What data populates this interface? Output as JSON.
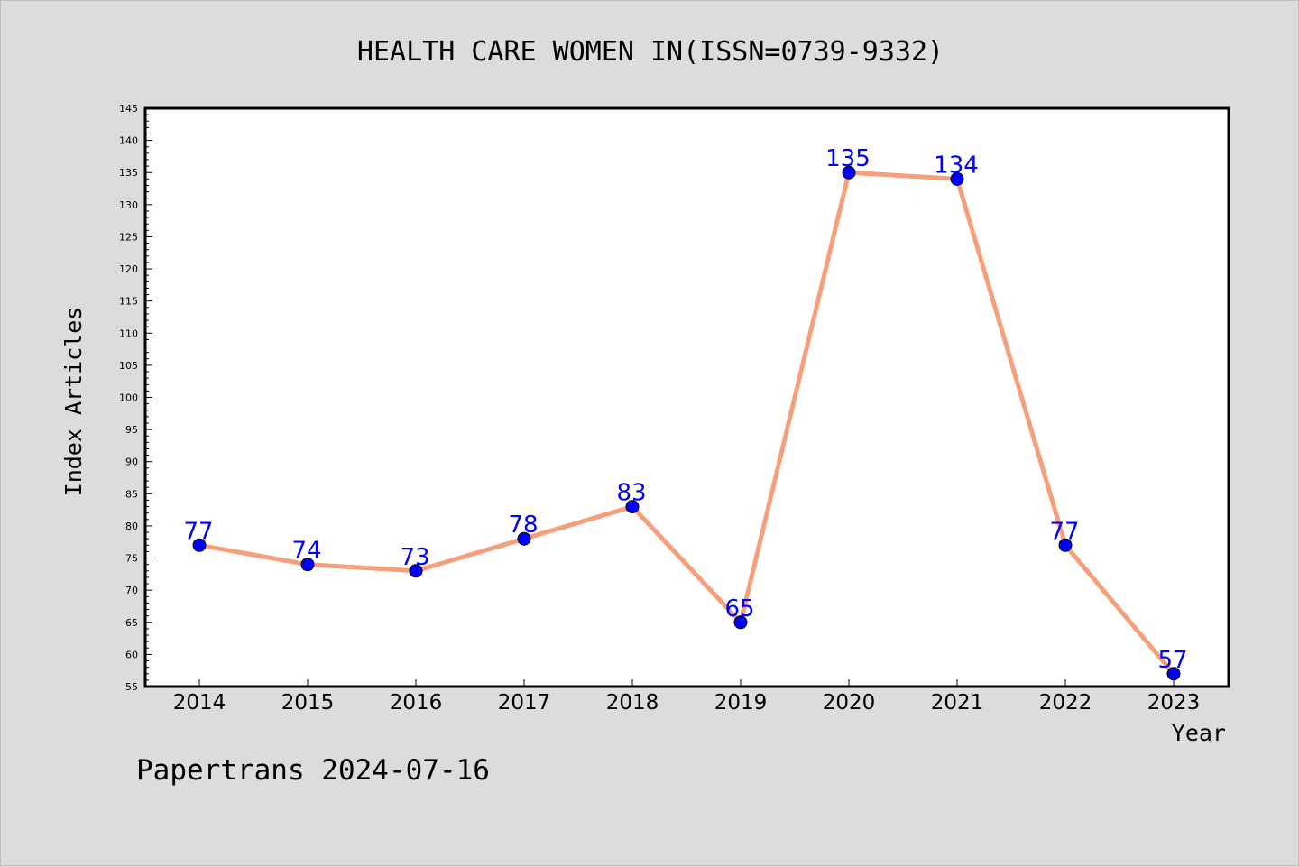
{
  "chart_data": {
    "type": "line",
    "title": "HEALTH CARE WOMEN IN(ISSN=0739-9332)",
    "xlabel": "Year",
    "ylabel": "Index Articles",
    "categories": [
      "2014",
      "2015",
      "2016",
      "2017",
      "2018",
      "2019",
      "2020",
      "2021",
      "2022",
      "2023"
    ],
    "series": [
      {
        "values": [
          77,
          74,
          73,
          78,
          83,
          65,
          135,
          134,
          77,
          57
        ]
      }
    ],
    "ylim": [
      55,
      145
    ],
    "yticks": [
      55,
      60,
      65,
      70,
      75,
      80,
      85,
      90,
      95,
      100,
      105,
      110,
      115,
      120,
      125,
      130,
      135,
      140,
      145
    ],
    "grid": false,
    "data_labels": true
  },
  "footer": {
    "credit": "Papertrans 2024-07-16"
  },
  "colors": {
    "background": "#dcdcdc",
    "plot_background": "#ffffff",
    "line": "#f5a07a",
    "marker": "#0000ff",
    "data_label": "#0000ff",
    "text": "#000000"
  }
}
